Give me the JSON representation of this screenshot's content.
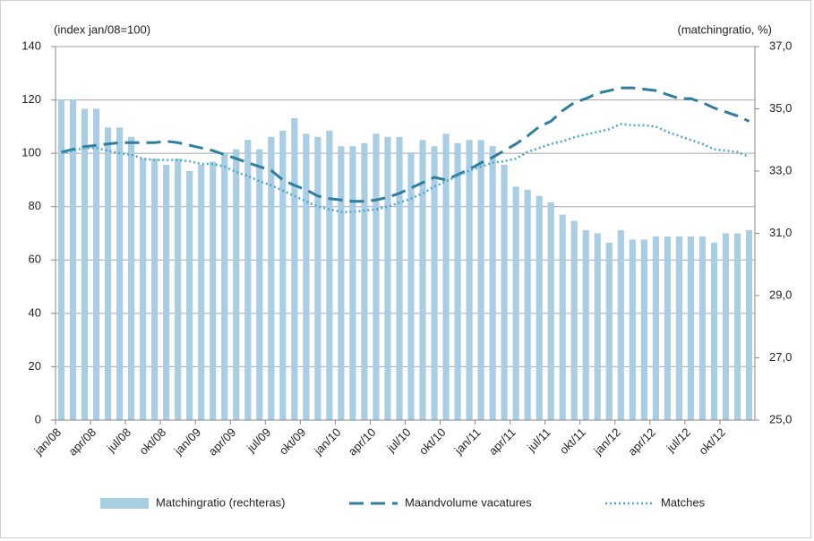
{
  "chart_data": {
    "type": "bar_line",
    "ylabel": "(index jan/08=100)",
    "y2label": "(matchingratio, %)",
    "categories": [
      "jan/08",
      null,
      null,
      "apr/08",
      null,
      null,
      "jul/08",
      null,
      null,
      "okt/08",
      null,
      null,
      "jan/09",
      null,
      null,
      "apr/09",
      null,
      null,
      "jul/09",
      null,
      null,
      "okt/09",
      null,
      null,
      "jan/10",
      null,
      null,
      "apr/10",
      null,
      null,
      "jul/10",
      null,
      null,
      "okt/10",
      null,
      null,
      "jan/11",
      null,
      null,
      "apr/11",
      null,
      null,
      "jul/11",
      null,
      null,
      "okt/11",
      null,
      null,
      "jan/12",
      null,
      null,
      "apr/12",
      null,
      null,
      "jul/12",
      null,
      null,
      "okt/12",
      null,
      null
    ],
    "series": [
      {
        "name": "Matchingratio (rechteras)",
        "type": "bar",
        "axis": "y2",
        "color": "#a9cde2",
        "values": [
          35.3,
          35.3,
          35.0,
          35.0,
          34.4,
          34.4,
          34.1,
          33.4,
          33.4,
          33.2,
          33.4,
          33.0,
          33.2,
          33.3,
          33.6,
          33.7,
          34.0,
          33.7,
          34.1,
          34.3,
          34.7,
          34.2,
          34.1,
          34.3,
          33.8,
          33.8,
          33.9,
          34.2,
          34.1,
          34.1,
          33.6,
          34.0,
          33.8,
          34.2,
          33.9,
          34.0,
          34.0,
          33.8,
          33.2,
          32.5,
          32.4,
          32.2,
          32.0,
          31.6,
          31.4,
          31.1,
          31.0,
          30.7,
          31.1,
          30.8,
          30.8,
          30.9,
          30.9,
          30.9,
          30.9,
          30.9,
          30.7,
          31.0,
          31.0,
          31.1
        ]
      },
      {
        "name": "Maandvolume vacatures",
        "type": "line",
        "style": "dashed",
        "color": "#2f7d9f",
        "values": [
          100.4,
          101.5,
          102.5,
          103,
          103.5,
          104,
          104,
          104,
          104,
          104.5,
          104,
          103,
          102,
          101,
          99.5,
          98,
          96.5,
          95,
          93.6,
          90,
          88,
          86.3,
          84,
          83,
          82.5,
          82,
          82,
          82.5,
          83.5,
          85,
          87,
          89,
          91,
          90,
          92,
          94,
          96.4,
          98.5,
          101,
          103.5,
          106.5,
          110,
          112,
          116,
          119,
          120.5,
          122.5,
          123.5,
          124.5,
          124.5,
          124,
          123.5,
          122,
          120.5,
          120.5,
          119,
          117,
          115.5,
          114,
          112
        ]
      },
      {
        "name": "Matches",
        "type": "line",
        "style": "dotted",
        "color": "#4aa8cf",
        "values": [
          100,
          101,
          102,
          102,
          101,
          100,
          99.5,
          98,
          97.5,
          97.5,
          97.5,
          97,
          96,
          96,
          95,
          93,
          91.5,
          89.5,
          88,
          86,
          84,
          82,
          80,
          79,
          78,
          78,
          78.5,
          79,
          80,
          81.5,
          83,
          85,
          87.5,
          89.5,
          91.5,
          93.5,
          95,
          96.5,
          97,
          98,
          100.5,
          102,
          103.5,
          104.5,
          106,
          107,
          108,
          109,
          111,
          110.5,
          110.5,
          110,
          108,
          106.5,
          105,
          103.5,
          101.5,
          101,
          100.5,
          98.7
        ]
      }
    ],
    "ylim": [
      0,
      140
    ],
    "yticks": [
      0,
      20,
      40,
      60,
      80,
      100,
      120,
      140
    ],
    "y2lim": [
      25,
      37
    ],
    "y2ticks": [
      {
        "value": 25,
        "label": "25,0"
      },
      {
        "value": 27,
        "label": "27,0"
      },
      {
        "value": 29,
        "label": "29,0"
      },
      {
        "value": 31,
        "label": "31,0"
      },
      {
        "value": 33,
        "label": "33,0"
      },
      {
        "value": 35,
        "label": "35,0"
      },
      {
        "value": 37,
        "label": "37,0"
      }
    ],
    "grid": true,
    "legend": "bottom"
  }
}
